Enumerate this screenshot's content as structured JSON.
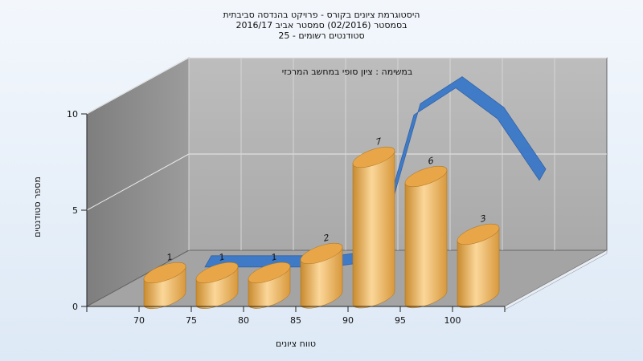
{
  "chart_data": {
    "type": "bar",
    "title_lines": [
      "היסטוגרמת ציונים בקורס - פרויקט בהנדסה סביבתית",
      "בסמסטר  (02/2016)  סמסטר אביב 2016/17",
      "סטודנטים רשומים - 25"
    ],
    "subtitle": "במשימה : ציון סופי במחשב המרכזי",
    "xlabel": "טווח ציונים",
    "ylabel": "מספר סטודנטים",
    "categories": [
      "70",
      "75",
      "80",
      "85",
      "90",
      "95",
      "100"
    ],
    "values": [
      1,
      1,
      1,
      2,
      7,
      6,
      3
    ],
    "ylim": [
      0,
      10
    ],
    "yticks": [
      0,
      5,
      10
    ],
    "trend_values": [
      0.3,
      0.3,
      0.3,
      0.3,
      0.6,
      8.2,
      9.6,
      8.0,
      4.8
    ],
    "grid": true,
    "colors": {
      "bar_light": "#fbd79a",
      "bar_mid": "#f2b25a",
      "bar_dark": "#c98a2e",
      "bar_top": "#e9a648",
      "trend": "#3a78c8",
      "back_wall": "#b4b4b4",
      "side_wall": "#8f8f8f",
      "floor": "#a6a6a6"
    }
  }
}
